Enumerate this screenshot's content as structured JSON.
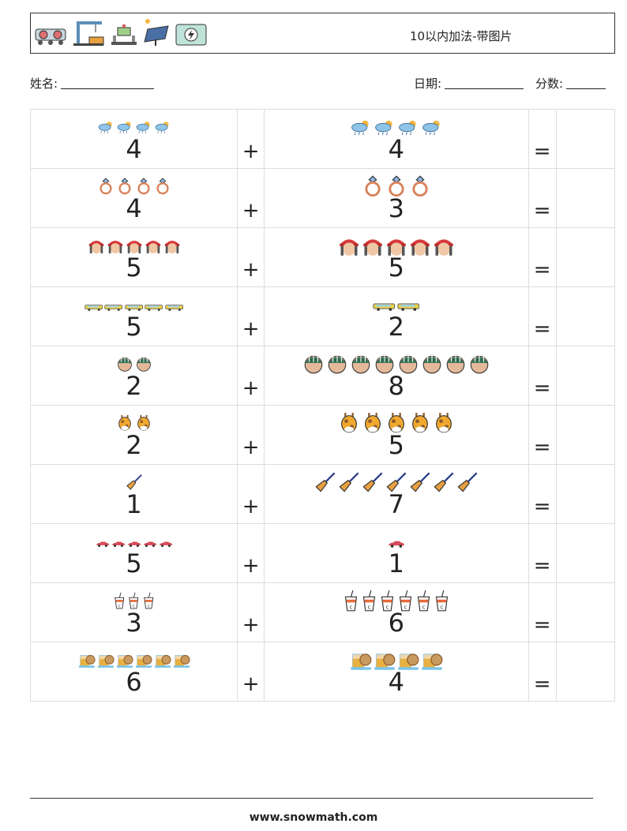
{
  "header": {
    "title": "10以内加法-带图片",
    "icons": [
      "train-icon",
      "crane-icon",
      "pipeline-icon",
      "solar-panel-icon",
      "battery-icon"
    ]
  },
  "info": {
    "name_label": "姓名:",
    "date_label": "日期:",
    "score_label": "分数:"
  },
  "operators": {
    "plus": "+",
    "equals": "="
  },
  "problems": [
    {
      "a": 4,
      "b": 4,
      "a_icon": "rain-cloud-icon",
      "b_icon": "rain-cloud-icon"
    },
    {
      "a": 4,
      "b": 3,
      "a_icon": "ring-icon",
      "b_icon": "ring-icon"
    },
    {
      "a": 5,
      "b": 5,
      "a_icon": "firefighter-icon",
      "b_icon": "firefighter-icon"
    },
    {
      "a": 5,
      "b": 2,
      "a_icon": "van-icon",
      "b_icon": "van-icon"
    },
    {
      "a": 2,
      "b": 8,
      "a_icon": "prisoner-head-icon",
      "b_icon": "prisoner-head-icon"
    },
    {
      "a": 2,
      "b": 5,
      "a_icon": "giraffe-icon",
      "b_icon": "giraffe-icon"
    },
    {
      "a": 1,
      "b": 7,
      "a_icon": "broom-icon",
      "b_icon": "broom-icon"
    },
    {
      "a": 5,
      "b": 1,
      "a_icon": "car-icon",
      "b_icon": "car-icon"
    },
    {
      "a": 3,
      "b": 6,
      "a_icon": "drink-cup-icon",
      "b_icon": "drink-cup-icon"
    },
    {
      "a": 6,
      "b": 4,
      "a_icon": "tea-cookie-icon",
      "b_icon": "tea-cookie-icon"
    }
  ],
  "footer": {
    "url": "www.snowmath.com"
  }
}
